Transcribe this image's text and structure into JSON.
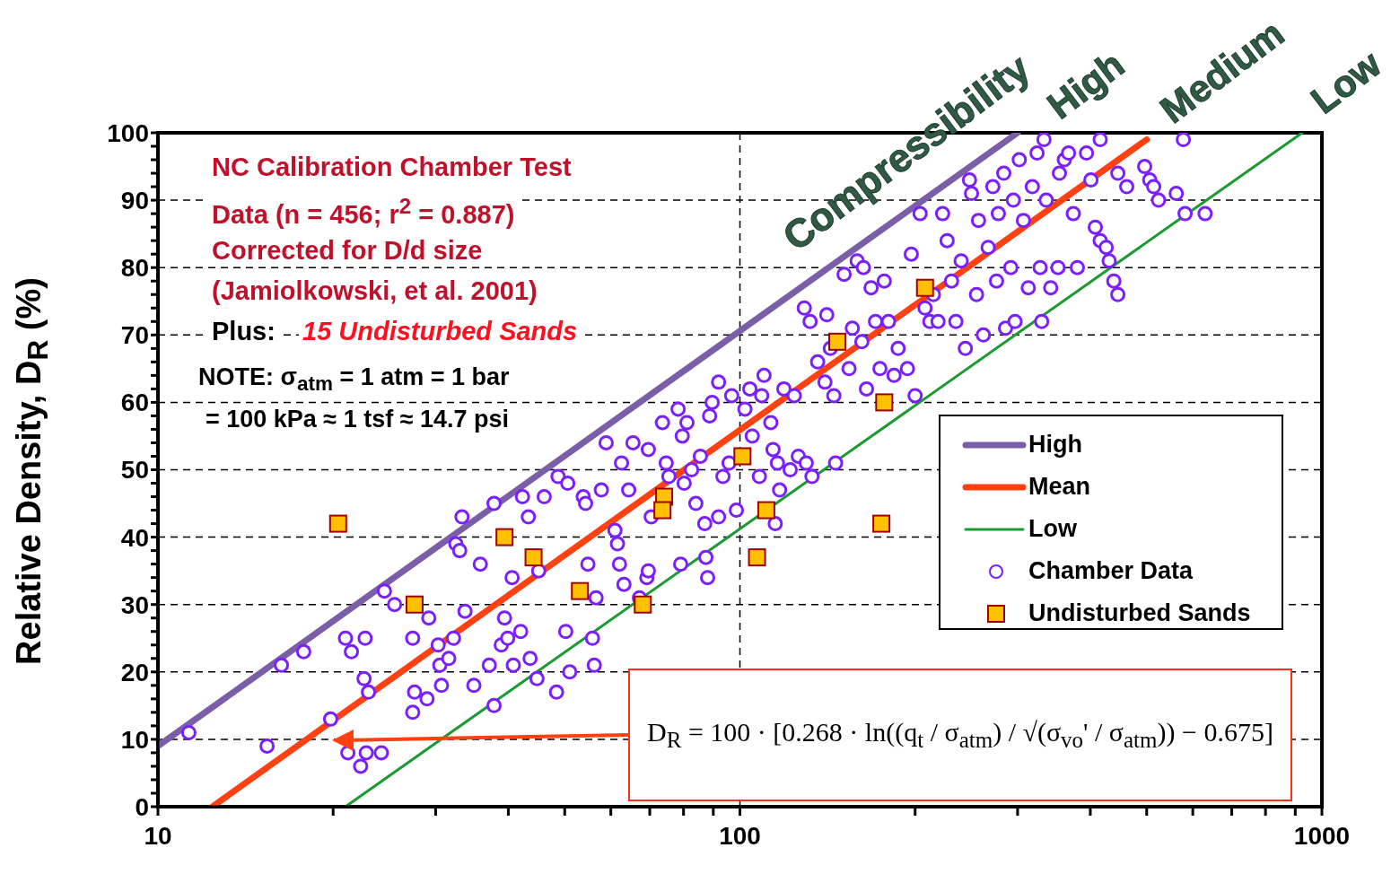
{
  "chart_data": {
    "type": "scatter",
    "ylabel": "Relative Density, D$_{R}$   (%)",
    "annotations": [
      "NC Calibration Chamber Test",
      "Data (n = 456; r$^{2}$ = 0.887)",
      "Corrected for D/d size",
      "(Jamiolkowski, et al. 2001)",
      "Plus:",
      "15 Undisturbed Sands",
      "NOTE:  σ$_{atm}$ = 1 atm = 1 bar",
      "= 100 kPa ≈ 1 tsf ≈ 14.7 psi",
      "Compressibility",
      "High",
      "Medium",
      "Low",
      "D$_{R}$ = 100 · [0.268 · ln((q$_{t}$ / σ$_{atm}$) / √(σ$_{vo}$' / σ$_{atm}$)) − 0.675]"
    ],
    "log": "x",
    "grid": true,
    "legend": "right",
    "xlim": [
      10,
      1000
    ],
    "xticks": [
      10,
      {
        "value": 20,
        "label": null
      },
      {
        "value": 30,
        "label": null
      },
      {
        "value": 40,
        "label": null
      },
      {
        "value": 50,
        "label": null
      },
      {
        "value": 60,
        "label": null
      },
      {
        "value": 70,
        "label": null
      },
      {
        "value": 80,
        "label": null
      },
      {
        "value": 90,
        "label": null
      },
      100,
      {
        "value": 200,
        "label": null
      },
      {
        "value": 300,
        "label": null
      },
      {
        "value": 400,
        "label": null
      },
      {
        "value": 500,
        "label": null
      },
      {
        "value": 600,
        "label": null
      },
      {
        "value": 700,
        "label": null
      },
      {
        "value": 800,
        "label": null
      },
      {
        "value": 900,
        "label": null
      },
      1000
    ],
    "ylim": [
      0,
      100
    ],
    "yticks": [
      0,
      {
        "value": 2,
        "label": null
      },
      {
        "value": 4,
        "label": null
      },
      {
        "value": 6,
        "label": null
      },
      {
        "value": 8,
        "label": null
      },
      10,
      {
        "value": 12,
        "label": null
      },
      {
        "value": 14,
        "label": null
      },
      {
        "value": 16,
        "label": null
      },
      {
        "value": 18,
        "label": null
      },
      20,
      {
        "value": 22,
        "label": null
      },
      {
        "value": 24,
        "label": null
      },
      {
        "value": 26,
        "label": null
      },
      {
        "value": 28,
        "label": null
      },
      30,
      {
        "value": 32,
        "label": null
      },
      {
        "value": 34,
        "label": null
      },
      {
        "value": 36,
        "label": null
      },
      {
        "value": 38,
        "label": null
      },
      40,
      {
        "value": 42,
        "label": null
      },
      {
        "value": 44,
        "label": null
      },
      {
        "value": 46,
        "label": null
      },
      {
        "value": 48,
        "label": null
      },
      50,
      {
        "value": 52,
        "label": null
      },
      {
        "value": 54,
        "label": null
      },
      {
        "value": 56,
        "label": null
      },
      {
        "value": 58,
        "label": null
      },
      60,
      {
        "value": 62,
        "label": null
      },
      {
        "value": 64,
        "label": null
      },
      {
        "value": 66,
        "label": null
      },
      {
        "value": 68,
        "label": null
      },
      70,
      {
        "value": 72,
        "label": null
      },
      {
        "value": 74,
        "label": null
      },
      {
        "value": 76,
        "label": null
      },
      {
        "value": 78,
        "label": null
      },
      80,
      {
        "value": 82,
        "label": null
      },
      {
        "value": 84,
        "label": null
      },
      {
        "value": 86,
        "label": null
      },
      {
        "value": 88,
        "label": null
      },
      90,
      {
        "value": 92,
        "label": null
      },
      {
        "value": 94,
        "label": null
      },
      {
        "value": 96,
        "label": null
      },
      {
        "value": 98,
        "label": null
      },
      100
    ],
    "series": [
      {
        "name": "High",
        "type": "line",
        "color": "#7a5fa8",
        "line_style": "solid",
        "x": [
          10,
          300
        ],
        "values": [
          9,
          100
        ]
      },
      {
        "name": "Mean",
        "type": "line",
        "color": "#ff4010",
        "line_style": "solid",
        "x": [
          12.4,
          500
        ],
        "values": [
          0,
          99
        ]
      },
      {
        "name": "Low",
        "type": "line",
        "color": "#1a9a30",
        "line_style": "solid",
        "x": [
          21,
          925
        ],
        "values": [
          0,
          100
        ]
      },
      {
        "name": "Chamber Data",
        "color": "#7b1fff",
        "marker": "circle",
        "x": [
          11.3,
          15.4,
          16.3,
          17.8,
          19.8,
          21,
          21.5,
          21.2,
          22.3,
          22.8,
          22.6,
          23,
          22.7,
          24.2,
          24.5,
          25.5,
          27.4,
          27.6,
          29,
          27.4,
          29.2,
          30.3,
          30.5,
          30.7,
          31.6,
          32.2,
          32.5,
          33.3,
          33.7,
          33,
          34.9,
          35.8,
          37.8,
          37.1,
          37.8,
          38.9,
          39.4,
          39.9,
          40.6,
          40.8,
          42,
          42.3,
          43.3,
          43.6,
          44.8,
          45.1,
          46.1,
          48.4,
          48.7,
          50.6,
          50.2,
          51,
          53.8,
          54.3,
          54.8,
          56.2,
          55.8,
          56.6,
          57.8,
          58.9,
          61,
          61.6,
          62.1,
          62.6,
          63.2,
          64.4,
          65.5,
          67.2,
          69.2,
          69.6,
          69.6,
          70.4,
          73.6,
          74.7,
          75.5,
          78.3,
          79.1,
          79.6,
          80.2,
          81.1,
          82.6,
          84,
          85.5,
          87,
          87.4,
          88,
          88.7,
          89.6,
          91.9,
          91.9,
          93.5,
          95.8,
          96.8,
          98.6,
          102,
          104,
          105,
          108,
          109,
          110,
          113,
          114,
          115,
          116,
          117,
          119,
          122,
          124,
          126,
          129,
          130,
          132,
          133,
          136,
          140,
          141,
          143,
          145,
          146,
          151,
          154,
          156,
          159,
          162,
          163,
          165,
          168,
          171,
          174,
          177,
          180,
          184,
          187,
          194,
          197,
          200,
          204,
          208,
          212,
          215,
          219,
          223,
          227,
          231,
          235,
          240,
          244,
          248,
          250,
          255,
          257,
          262,
          267,
          272,
          276,
          278,
          284,
          286,
          292,
          295,
          297,
          302,
          307,
          313,
          318,
          324,
          328,
          330,
          333,
          336,
          342,
          352,
          354,
          361,
          367,
          374,
          380,
          394,
          401,
          408,
          416,
          416,
          426,
          431,
          439,
          446,
          446,
          462,
          496,
          506,
          514,
          524,
          562,
          578,
          582,
          630
        ],
        "values": [
          11,
          9,
          21,
          23,
          13,
          25,
          23,
          8,
          6,
          8,
          19,
          17,
          25,
          8,
          32,
          30,
          14,
          17,
          16,
          25,
          28,
          24,
          21,
          18,
          22,
          25,
          39,
          43,
          29,
          38,
          18,
          36,
          45,
          21,
          15,
          24,
          28,
          25,
          34,
          21,
          26,
          46,
          43,
          22,
          19,
          35,
          46,
          17,
          49,
          48,
          26,
          20,
          46,
          45,
          36,
          21,
          25,
          31,
          47,
          54,
          41,
          39,
          36,
          51,
          33,
          47,
          54,
          31,
          34,
          35,
          53,
          43,
          57,
          51,
          49,
          59,
          36,
          55,
          48,
          57,
          50,
          45,
          52,
          42,
          37,
          34,
          58,
          60,
          63,
          43,
          49,
          51,
          61,
          44,
          59,
          62,
          55,
          49,
          61,
          64,
          57,
          53,
          42,
          51,
          47,
          62,
          50,
          61,
          52,
          74,
          51,
          72,
          49,
          66,
          63,
          73,
          68,
          61,
          51,
          79,
          65,
          71,
          81,
          69,
          80,
          62,
          77,
          72,
          65,
          78,
          72,
          64,
          68,
          65,
          82,
          61,
          88,
          74,
          72,
          76,
          72,
          88,
          84,
          78,
          72,
          81,
          68,
          93,
          91,
          76,
          87,
          70,
          83,
          92,
          78,
          88,
          94,
          71,
          80,
          90,
          72,
          96,
          87,
          77,
          92,
          97,
          80,
          72,
          99,
          90,
          77,
          80,
          94,
          96,
          97,
          88,
          80,
          97,
          93,
          86,
          99,
          84,
          83,
          81,
          78,
          76,
          94,
          92,
          95,
          93,
          92,
          90,
          91,
          99,
          88,
          88
        ]
      },
      {
        "name": "Undisturbed Sands",
        "color": "#ffc000",
        "marker": "square",
        "x": [
          20.4,
          27.6,
          39.4,
          44.2,
          53.1,
          68.1,
          74.1,
          73.6,
          101,
          107,
          111,
          147,
          177,
          175,
          208
        ],
        "values": [
          42,
          30,
          40,
          37,
          32,
          30,
          46,
          44,
          52,
          37,
          44,
          69,
          60,
          42,
          77
        ]
      }
    ]
  }
}
